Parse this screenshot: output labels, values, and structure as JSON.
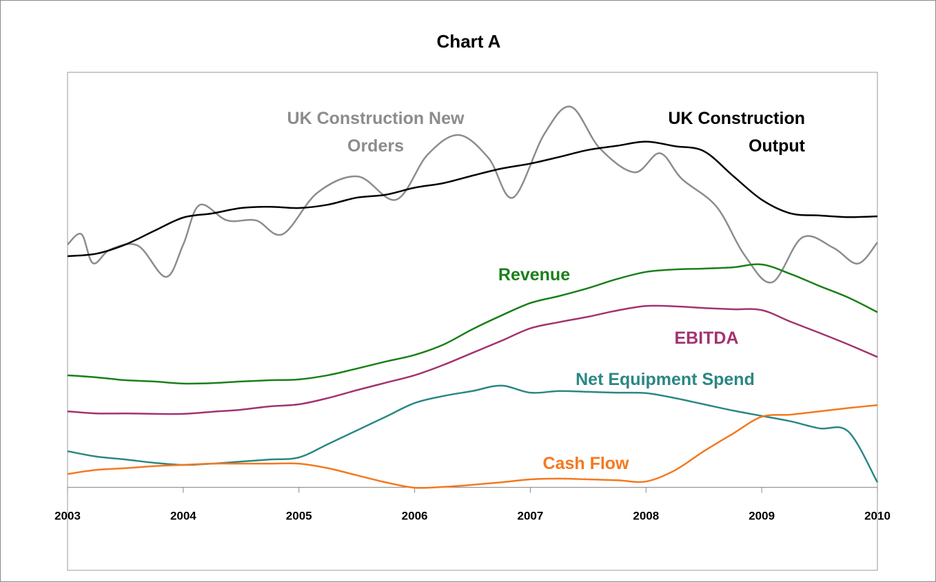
{
  "chart_data": {
    "type": "line",
    "title": "Chart A",
    "xlim": [
      2003,
      2010
    ],
    "xticks": [
      2003,
      2004,
      2005,
      2006,
      2007,
      2008,
      2009,
      2010
    ],
    "ylim": [
      -20,
      100
    ],
    "x": [
      2003,
      2003.25,
      2003.5,
      2003.75,
      2004,
      2004.25,
      2004.5,
      2004.75,
      2005,
      2005.25,
      2005.5,
      2005.75,
      2006,
      2006.25,
      2006.5,
      2006.75,
      2007,
      2007.25,
      2007.5,
      2007.75,
      2008,
      2008.25,
      2008.5,
      2008.75,
      2009,
      2009.25,
      2009.5,
      2009.75,
      2010
    ],
    "series": [
      {
        "name": "UK Construction New Orders",
        "color": "#8c8c8c",
        "x": [
          2003.0,
          2003.12,
          2003.22,
          2003.37,
          2003.61,
          2003.85,
          2004.0,
          2004.14,
          2004.38,
          2004.63,
          2004.86,
          2005.16,
          2005.51,
          2005.84,
          2006.11,
          2006.38,
          2006.64,
          2006.85,
          2007.12,
          2007.35,
          2007.6,
          2007.9,
          2008.12,
          2008.31,
          2008.61,
          2008.85,
          2009.09,
          2009.35,
          2009.62,
          2009.83,
          2010.0
        ],
        "values": [
          58.5,
          61.0,
          54.0,
          57.3,
          58.2,
          50.7,
          58.5,
          68.0,
          64.3,
          64.3,
          61.0,
          71.0,
          74.9,
          69.3,
          80.1,
          84.9,
          79.3,
          69.8,
          85.1,
          91.7,
          81.7,
          75.9,
          80.5,
          74.3,
          67.6,
          56.0,
          49.4,
          60.2,
          57.7,
          53.9,
          59.0
        ]
      },
      {
        "name": "UK Construction Output",
        "color": "#000000",
        "values": [
          55.7,
          56.3,
          58.5,
          61.8,
          65.0,
          66.0,
          67.3,
          67.6,
          67.3,
          68.1,
          69.8,
          70.5,
          72.2,
          73.3,
          75.1,
          76.8,
          78.0,
          79.6,
          81.3,
          82.3,
          83.3,
          82.2,
          81.0,
          75.1,
          69.3,
          66.0,
          65.5,
          65.1,
          65.3
        ]
      },
      {
        "name": "Revenue",
        "color": "#1a7f1a",
        "values": [
          27.0,
          26.5,
          25.8,
          25.5,
          25.0,
          25.1,
          25.5,
          25.8,
          26.0,
          27.0,
          28.6,
          30.3,
          31.9,
          34.4,
          38.1,
          41.4,
          44.4,
          46.1,
          48.0,
          50.2,
          51.9,
          52.5,
          52.7,
          53.0,
          53.7,
          51.4,
          48.5,
          45.7,
          42.2
        ]
      },
      {
        "name": "EBITDA",
        "color": "#a3326f",
        "values": [
          18.3,
          17.8,
          17.8,
          17.7,
          17.7,
          18.2,
          18.7,
          19.5,
          20.0,
          21.5,
          23.4,
          25.2,
          27.0,
          29.5,
          32.4,
          35.3,
          38.3,
          39.8,
          41.1,
          42.6,
          43.7,
          43.6,
          43.2,
          42.9,
          42.7,
          39.9,
          37.2,
          34.4,
          31.4
        ]
      },
      {
        "name": "Net Equipment Spend",
        "color": "#2a8783",
        "values": [
          8.7,
          7.4,
          6.7,
          5.9,
          5.4,
          5.7,
          6.2,
          6.7,
          7.2,
          10.4,
          13.7,
          17.0,
          20.3,
          22.0,
          23.2,
          24.5,
          22.8,
          23.2,
          23.0,
          22.8,
          22.7,
          21.5,
          20.0,
          18.5,
          17.2,
          15.9,
          14.2,
          13.4,
          1.2
        ]
      },
      {
        "name": "Cash Flow",
        "color": "#f5781e",
        "values": [
          3.2,
          4.2,
          4.6,
          5.1,
          5.4,
          5.7,
          5.7,
          5.7,
          5.7,
          4.6,
          2.9,
          1.2,
          -0.1,
          0.1,
          0.6,
          1.2,
          1.9,
          2.1,
          1.9,
          1.7,
          1.4,
          4.1,
          8.7,
          12.9,
          17.0,
          17.5,
          18.3,
          19.1,
          19.8
        ]
      }
    ]
  }
}
